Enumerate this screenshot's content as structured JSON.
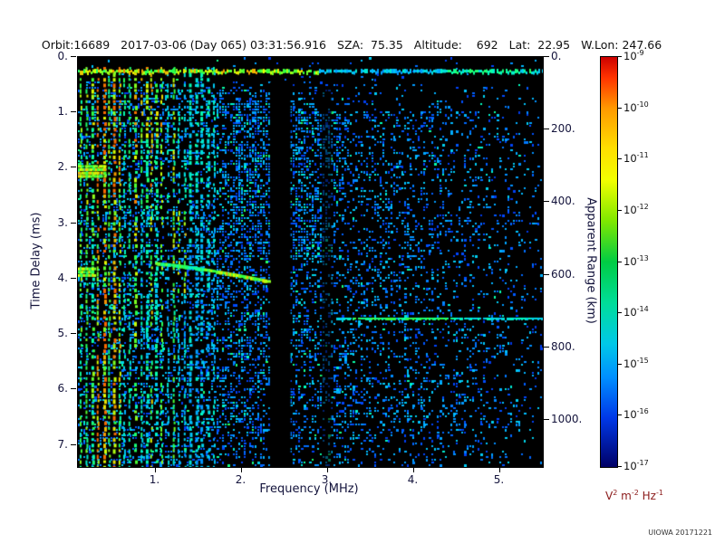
{
  "header": {
    "orbit": "Orbit:16689",
    "datetime": "2017-03-06 (Day 065) 03:31:56.916",
    "sza": "SZA:  75.35",
    "altitude": "Altitude:    692",
    "lat": "Lat:  22.95",
    "wlon": "W.Lon: 247.66"
  },
  "footer": {
    "credit": "UIOWA 20171221"
  },
  "chart_data": {
    "type": "heatmap",
    "description": "Radar sounder ionogram: echo intensity versus frequency and time delay",
    "xlabel": "Frequency (MHz)",
    "ylabel": "Time Delay (ms)",
    "y2label": "Apparent Range (km)",
    "xlim": [
      0.1,
      5.5
    ],
    "ylim": [
      0,
      7.4
    ],
    "y2lim": [
      0,
      1130
    ],
    "x_ticks": [
      1,
      2,
      3,
      4,
      5
    ],
    "y_ticks": [
      0,
      1,
      2,
      3,
      4,
      5,
      6,
      7
    ],
    "y2_ticks": [
      0,
      200,
      400,
      600,
      800,
      1000
    ],
    "tick_suffix": ".",
    "plot_background": "#000000",
    "colorbar": {
      "exponent_base": "10",
      "exponents": [
        -9,
        -10,
        -11,
        -12,
        -13,
        -14,
        -15,
        -16,
        -17
      ],
      "unit_parts": [
        {
          "b": "V",
          "s": "2"
        },
        {
          "b": "m",
          "s": "-2"
        },
        {
          "b": "Hz",
          "s": "-1"
        }
      ],
      "gradient_stops": [
        [
          0,
          "#cc0000"
        ],
        [
          0.05,
          "#ff3300"
        ],
        [
          0.125,
          "#ff9900"
        ],
        [
          0.22,
          "#ffdd00"
        ],
        [
          0.3,
          "#f2ff00"
        ],
        [
          0.4,
          "#7fe800"
        ],
        [
          0.5,
          "#00cc44"
        ],
        [
          0.6,
          "#00dd99"
        ],
        [
          0.7,
          "#00c8e8"
        ],
        [
          0.78,
          "#0090ff"
        ],
        [
          0.88,
          "#0038e8"
        ],
        [
          1,
          "#000066"
        ]
      ]
    },
    "colormap_stops": [
      [
        0,
        [
          0,
          0,
          30
        ]
      ],
      [
        0.12,
        [
          0,
          0,
          130
        ]
      ],
      [
        0.3,
        [
          0,
          70,
          255
        ]
      ],
      [
        0.48,
        [
          0,
          190,
          255
        ]
      ],
      [
        0.62,
        [
          0,
          255,
          190
        ]
      ],
      [
        0.75,
        [
          50,
          255,
          60
        ]
      ],
      [
        0.87,
        [
          230,
          255,
          0
        ]
      ],
      [
        1,
        [
          255,
          60,
          0
        ]
      ]
    ],
    "features": {
      "seed": 20171221,
      "top_band": {
        "t": 0.27,
        "f_bright_max": 2.9,
        "f_dim_max": 4.3
      },
      "vertical_stripes": {
        "f_start": 0.12,
        "f_end": 1.68,
        "spacing": 0.062,
        "t_start": 0.18
      },
      "dark_columns": [
        {
          "f0": 2.33,
          "f1": 2.57,
          "t0": 0.45,
          "alpha": 1
        },
        {
          "f0": 2.93,
          "f1": 3.05,
          "t0": 0.55,
          "alpha": 0.55
        }
      ],
      "echo_trace": {
        "f0": 1.0,
        "f1": 2.32,
        "t0": 3.72,
        "t1": 4.05
      },
      "horizontal_line": {
        "t": 4.72,
        "f0": 3.1,
        "f1": 5.5
      },
      "bright_blobs": [
        {
          "f0": 0.1,
          "f1": 0.42,
          "t0": 1.95,
          "t1": 2.18
        },
        {
          "f0": 0.1,
          "f1": 0.3,
          "t0": 3.8,
          "t1": 3.95
        }
      ]
    }
  }
}
